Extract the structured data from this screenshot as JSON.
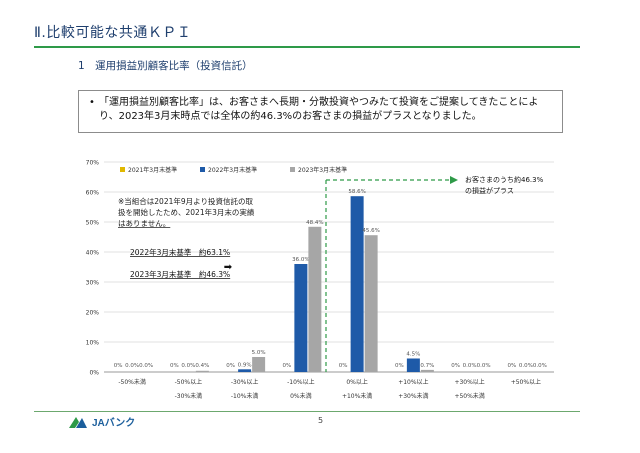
{
  "page": {
    "title": "Ⅱ.比較可能な共通ＫＰＩ",
    "section_heading": "1　運用損益別顧客比率（投資信託）",
    "summary_bullet": "•",
    "summary_text": "「運用損益別顧客比率」は、お客さまへ長期・分散投資やつみたて投資をご提案してきたことにより、2023年3月末時点では全体の約46.3%のお客さまの損益がプラスとなりました。",
    "page_number": "5",
    "logo_text": "JAバンク"
  },
  "colors": {
    "series_2021": "#e0b800",
    "series_2022": "#1e5aa8",
    "series_2023": "#a6a6a6",
    "accent_green": "#2e9a48",
    "title_navy": "#1f3f6e"
  },
  "chart_data": {
    "type": "bar",
    "ylim": [
      0,
      70
    ],
    "yticks": [
      "0%",
      "10%",
      "20%",
      "30%",
      "40%",
      "50%",
      "60%",
      "70%"
    ],
    "categories": [
      [
        "-50%未満"
      ],
      [
        "-50%以上",
        "-30%未満"
      ],
      [
        "-30%以上",
        "-10%未満"
      ],
      [
        "-10%以上",
        "0%未満"
      ],
      [
        "0%以上",
        "+10%未満"
      ],
      [
        "+10%以上",
        "+30%未満"
      ],
      [
        "+30%以上",
        "+50%未満"
      ],
      [
        "+50%以上"
      ]
    ],
    "series": [
      {
        "name": "2021年3月末基準",
        "color": "#e0b800",
        "values": [
          0,
          0,
          0,
          0,
          0,
          0,
          0,
          0
        ],
        "labels": [
          "0%",
          "0%",
          "0%",
          "0%",
          "0%",
          "0%",
          "0%",
          "0%"
        ]
      },
      {
        "name": "2022年3月末基準",
        "color": "#1e5aa8",
        "values": [
          0.0,
          0.0,
          0.9,
          36.0,
          58.6,
          4.5,
          0.0,
          0.0
        ],
        "labels": [
          "0.0%",
          "0.0%",
          "0.9%",
          "36.0%",
          "58.6%",
          "4.5%",
          "0.0%",
          "0.0%"
        ]
      },
      {
        "name": "2023年3月末基準",
        "color": "#a6a6a6",
        "values": [
          0.0,
          0.4,
          5.0,
          48.4,
          45.6,
          0.7,
          0.0,
          0.0
        ],
        "labels": [
          "0.0%",
          "0.4%",
          "5.0%",
          "48.4%",
          "45.6%",
          "0.7%",
          "0.0%",
          "0.0%"
        ]
      }
    ],
    "note": "※当組合は2021年9月より投資信託の取扱を開始したため、2021年3月末の実績はありません。",
    "comparison_2022": "2022年3月末基準　約63.1%",
    "comparison_arrow": "➡",
    "comparison_2023": "2023年3月末基準　約46.3%",
    "callout": "お客さまのうち約46.3%の損益がプラス",
    "legend_position": "top"
  }
}
